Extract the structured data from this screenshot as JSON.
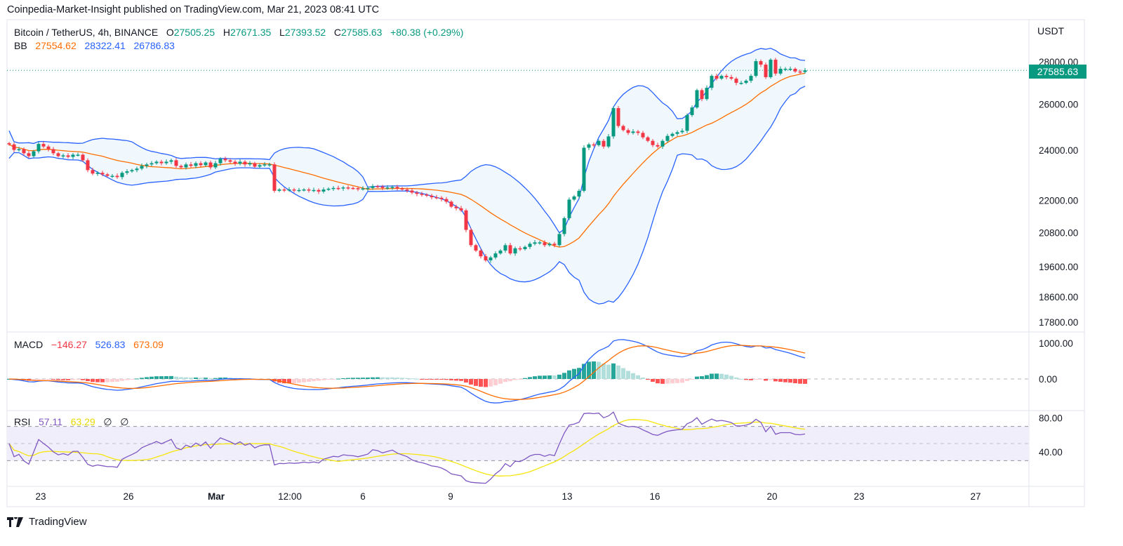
{
  "publish_line": "Coinpedia-Market-Insight published on TradingView.com, Mar 21, 2023 08:41 UTC",
  "legend": {
    "symbol": "Bitcoin / TetherUS, 4h, BINANCE",
    "o_label": "O",
    "o": "27505.25",
    "h_label": "H",
    "h": "27671.35",
    "l_label": "L",
    "l": "27393.52",
    "c_label": "C",
    "c": "27585.63",
    "change": "+80.38 (+0.29%)",
    "bb_label": "BB",
    "bb_basis": "27554.62",
    "bb_upper": "28322.41",
    "bb_lower": "26786.83",
    "macd_label": "MACD",
    "macd_hist": "−146.27",
    "macd_line": "526.83",
    "macd_signal": "673.09",
    "rsi_label": "RSI",
    "rsi": "57.11",
    "rsi_ma": "63.29",
    "rsi_na1": "∅",
    "rsi_na2": "∅"
  },
  "currency": "USDT",
  "last_price_tag": "27585.63",
  "brand": "TradingView",
  "colors": {
    "up": "#089981",
    "down": "#f23645",
    "bb_basis": "#ff6d00",
    "bb_band": "#2962ff",
    "bb_fill": "#f0f8fd",
    "rsi": "#7e57c2",
    "rsi_ma": "#f5e50a",
    "rsi_bg": "#f1eefb",
    "tag": "#089981"
  },
  "chart_data": {
    "type": "candlestick",
    "timeframe": "4h",
    "price_scale": "log",
    "price_ticks": [
      "28000.00",
      "26000.00",
      "24000.00",
      "22000.00",
      "20800.00",
      "19600.00",
      "18600.00",
      "17800.00"
    ],
    "macd_ticks": [
      "1000.00",
      "0.00"
    ],
    "rsi_ticks": [
      "80.00",
      "40.00"
    ],
    "time_ticks": [
      "23",
      "26",
      "Mar",
      "12:00",
      "6",
      "9",
      "13",
      "16",
      "20",
      "23",
      "27"
    ],
    "first_open": 24300,
    "closes": [
      24250,
      24020,
      24050,
      23880,
      23760,
      23960,
      24270,
      24160,
      24050,
      23880,
      23760,
      23790,
      23730,
      23820,
      23820,
      23590,
      23190,
      23050,
      23080,
      23020,
      22960,
      22960,
      22910,
      23080,
      23140,
      23190,
      23250,
      23360,
      23420,
      23470,
      23530,
      23470,
      23530,
      23590,
      23360,
      23300,
      23420,
      23360,
      23470,
      23390,
      23500,
      23300,
      23470,
      23650,
      23590,
      23530,
      23450,
      23530,
      23420,
      23470,
      23330,
      23390,
      23420,
      23420,
      22370,
      22420,
      22400,
      22420,
      22390,
      22400,
      22420,
      22380,
      22400,
      22340,
      22420,
      22450,
      22480,
      22460,
      22500,
      22480,
      22470,
      22440,
      22460,
      22480,
      22550,
      22530,
      22480,
      22500,
      22520,
      22460,
      22420,
      22380,
      22300,
      22250,
      22220,
      22180,
      22120,
      22100,
      22050,
      21950,
      21760,
      21700,
      21620,
      20900,
      20350,
      20160,
      19960,
      19820,
      19920,
      20060,
      20160,
      20350,
      20060,
      20240,
      20210,
      20290,
      20400,
      20450,
      20450,
      20350,
      20400,
      20350,
      20750,
      21330,
      22030,
      22150,
      22370,
      24110,
      24250,
      24220,
      24400,
      24160,
      24590,
      25830,
      25040,
      24860,
      24740,
      24800,
      24740,
      24550,
      24400,
      24220,
      24160,
      24400,
      24610,
      24700,
      24770,
      24830,
      25520,
      25860,
      26650,
      26240,
      26760,
      27320,
      27190,
      27320,
      27260,
      27190,
      26990,
      26990,
      27090,
      27320,
      28030,
      27860,
      27260,
      28100,
      27430,
      27660,
      27660,
      27660,
      27530,
      27505.25,
      27585.63
    ]
  }
}
